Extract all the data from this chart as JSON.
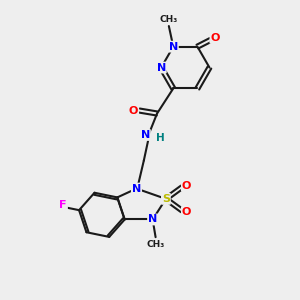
{
  "bg_color": "#eeeeee",
  "bond_color": "#1a1a1a",
  "atom_colors": {
    "N": "#0000ff",
    "O": "#ff0000",
    "S": "#bbbb00",
    "F": "#ff00ff",
    "H": "#008080",
    "C": "#1a1a1a"
  },
  "figsize": [
    3.0,
    3.0
  ],
  "dpi": 100,
  "xlim": [
    0,
    10
  ],
  "ylim": [
    0,
    10
  ]
}
